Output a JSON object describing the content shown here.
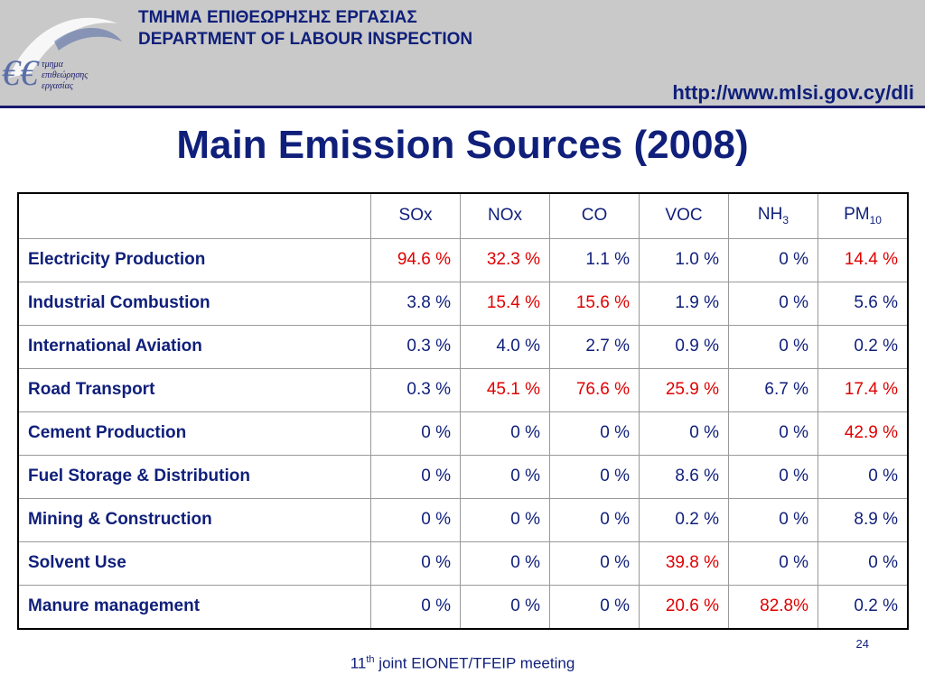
{
  "header": {
    "dept_greek": "ΤΜΗΜΑ ΕΠΙΘΕΩΡΗΣΗΣ ΕΡΓΑΣΙΑΣ",
    "dept_english": "DEPARTMENT OF LABOUR INSPECTION",
    "url": "http://www.mlsi.gov.cy/dli",
    "logo_line1": "τμημα",
    "logo_line2": "επιθεώρησης",
    "logo_line3": "εργασίας"
  },
  "colors": {
    "brand_blue": "#0f1f7a",
    "highlight_red": "#e00000",
    "header_gray": "#c9c9c9"
  },
  "chart_data": {
    "type": "table",
    "title": "Main Emission Sources (2008)",
    "columns": [
      {
        "label": "SOx",
        "sub": ""
      },
      {
        "label": "NOx",
        "sub": ""
      },
      {
        "label": "CO",
        "sub": ""
      },
      {
        "label": "VOC",
        "sub": ""
      },
      {
        "label": "NH",
        "sub": "3"
      },
      {
        "label": "PM",
        "sub": "10"
      }
    ],
    "rows": [
      {
        "source": "Electricity Production",
        "values": [
          "94.6 %",
          "32.3 %",
          "1.1 %",
          "1.0 %",
          "0 %",
          "14.4 %"
        ],
        "highlight": [
          true,
          true,
          false,
          false,
          false,
          true
        ]
      },
      {
        "source": "Industrial Combustion",
        "values": [
          "3.8 %",
          "15.4 %",
          "15.6 %",
          "1.9 %",
          "0 %",
          "5.6 %"
        ],
        "highlight": [
          false,
          true,
          true,
          false,
          false,
          false
        ]
      },
      {
        "source": "International Aviation",
        "values": [
          "0.3 %",
          "4.0 %",
          "2.7 %",
          "0.9 %",
          "0 %",
          "0.2 %"
        ],
        "highlight": [
          false,
          false,
          false,
          false,
          false,
          false
        ]
      },
      {
        "source": "Road Transport",
        "values": [
          "0.3 %",
          "45.1 %",
          "76.6 %",
          "25.9 %",
          "6.7 %",
          "17.4 %"
        ],
        "highlight": [
          false,
          true,
          true,
          true,
          false,
          true
        ]
      },
      {
        "source": "Cement Production",
        "values": [
          "0 %",
          "0 %",
          "0 %",
          "0 %",
          "0 %",
          "42.9 %"
        ],
        "highlight": [
          false,
          false,
          false,
          false,
          false,
          true
        ]
      },
      {
        "source": "Fuel Storage & Distribution",
        "values": [
          "0 %",
          "0 %",
          "0 %",
          "8.6 %",
          "0 %",
          "0 %"
        ],
        "highlight": [
          false,
          false,
          false,
          false,
          false,
          false
        ]
      },
      {
        "source": "Mining & Construction",
        "values": [
          "0 %",
          "0 %",
          "0 %",
          "0.2 %",
          "0 %",
          "8.9 %"
        ],
        "highlight": [
          false,
          false,
          false,
          false,
          false,
          false
        ]
      },
      {
        "source": "Solvent Use",
        "values": [
          "0 %",
          "0 %",
          "0 %",
          "39.8 %",
          "0 %",
          "0 %"
        ],
        "highlight": [
          false,
          false,
          false,
          true,
          false,
          false
        ]
      },
      {
        "source": "Manure management",
        "values": [
          "0 %",
          "0 %",
          "0 %",
          "20.6 %",
          "82.8%",
          "0.2 %"
        ],
        "highlight": [
          false,
          false,
          false,
          true,
          true,
          false
        ]
      }
    ]
  },
  "footer": {
    "page_number": "24",
    "meeting_num": "11",
    "meeting_sup": "th",
    "meeting_text": " joint EIONET/TFEIP meeting"
  }
}
